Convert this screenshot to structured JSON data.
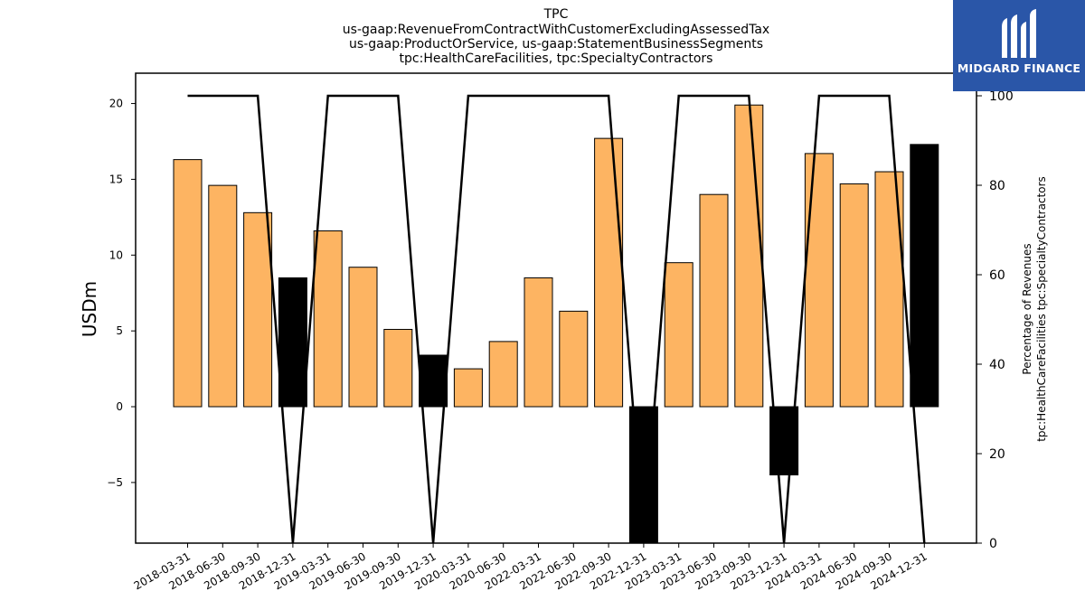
{
  "chart_data": {
    "type": "bar",
    "title_lines": [
      "TPC",
      "us-gaap:RevenueFromContractWithCustomerExcludingAssessedTax",
      "us-gaap:ProductOrService, us-gaap:StatementBusinessSegments",
      "tpc:HealthCareFacilities, tpc:SpecialtyContractors"
    ],
    "ylabel": "USDm",
    "y2label_lines": [
      "Percentage of Revenues",
      "tpc:HealthCareFacilities tpc:SpecialtyContractors"
    ],
    "categories": [
      "2018-03-31",
      "2018-06-30",
      "2018-09-30",
      "2018-12-31",
      "2019-03-31",
      "2019-06-30",
      "2019-09-30",
      "2019-12-31",
      "2020-03-31",
      "2020-06-30",
      "2022-03-31",
      "2022-06-30",
      "2022-09-30",
      "2022-12-31",
      "2023-03-31",
      "2023-06-30",
      "2023-09-30",
      "2023-12-31",
      "2024-03-31",
      "2024-06-30",
      "2024-09-30",
      "2024-12-31"
    ],
    "values": [
      16.3,
      14.6,
      12.8,
      8.5,
      11.6,
      9.2,
      5.1,
      3.4,
      2.5,
      4.3,
      8.5,
      6.3,
      17.7,
      -9.5,
      9.5,
      14.0,
      19.9,
      -4.5,
      16.7,
      14.7,
      15.5,
      17.3
    ],
    "bar_highlight": [
      false,
      false,
      false,
      true,
      false,
      false,
      false,
      true,
      false,
      false,
      false,
      false,
      false,
      true,
      false,
      false,
      false,
      true,
      false,
      false,
      false,
      true
    ],
    "percentage_series": [
      100,
      100,
      100,
      0,
      100,
      100,
      100,
      0,
      100,
      100,
      100,
      100,
      100,
      0,
      100,
      100,
      100,
      0,
      100,
      100,
      100,
      0
    ],
    "ylim": [
      -9,
      22
    ],
    "yticks": [
      -5,
      0,
      5,
      10,
      15,
      20
    ],
    "y2lim": [
      0,
      100
    ],
    "y2ticks": [
      0,
      20,
      40,
      60,
      80,
      100
    ],
    "grid": false,
    "colors": {
      "bar": "#fdb462",
      "bar_highlight": "#000000",
      "line": "#000000"
    }
  },
  "logo": {
    "text": "MIDGARD FINANCE",
    "background": "#2a56a8"
  }
}
